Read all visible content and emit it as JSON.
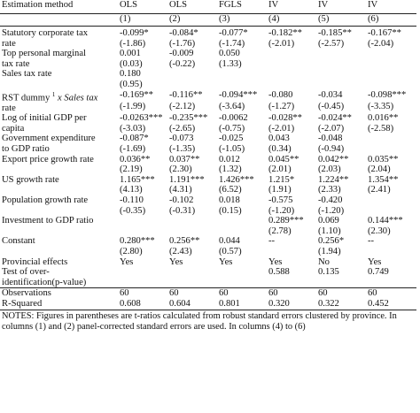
{
  "header": {
    "label": "Estimation method",
    "methods": [
      "OLS",
      "OLS",
      "FGLS",
      "IV",
      "IV",
      "IV"
    ],
    "numbers": [
      "(1)",
      "(2)",
      "(3)",
      "(4)",
      "(5)",
      "(6)"
    ]
  },
  "rows": [
    {
      "name_lines": [
        "Statutory corporate tax",
        "rate"
      ],
      "coef": [
        "-0.099*",
        "-0.084*",
        "-0.077*",
        "-0.182**",
        "-0.185**",
        "-0.167**"
      ],
      "t": [
        "(-1.86)",
        "(-1.76)",
        "(-1.74)",
        "(-2.01)",
        "(-2.57)",
        "(-2.04)"
      ]
    },
    {
      "name_lines": [
        "Top personal marginal",
        "tax rate"
      ],
      "coef": [
        "0.001",
        "-0.009",
        "0.050",
        "",
        "",
        ""
      ],
      "t": [
        "(0.03)",
        "(-0.22)",
        "(1.33)",
        "",
        "",
        ""
      ]
    },
    {
      "name_lines": [
        "Sales tax rate"
      ],
      "coef": [
        "0.180",
        "",
        "",
        "",
        "",
        ""
      ],
      "t": [
        "(0.95)",
        "",
        "",
        "",
        "",
        ""
      ]
    },
    {
      "name_lines": [
        "RST dummy ",
        "1",
        " x Sales tax",
        "rate"
      ],
      "coef": [
        "-0.169**",
        "-0.116**",
        "-0.094***",
        "-0.080",
        "-0.034",
        "-0.098***"
      ],
      "t": [
        "(-1.99)",
        "(-2.12)",
        "(-3.64)",
        "(-1.27)",
        "(-0.45)",
        "(-3.35)"
      ]
    },
    {
      "name_lines": [
        "Log of initial GDP per",
        "capita"
      ],
      "coef": [
        "-0.0263***",
        "-0.235***",
        "-0.0062",
        "-0.028**",
        "-0.024**",
        "0.016**"
      ],
      "t": [
        "(-3.03)",
        "(-2.65)",
        "(-0.75)",
        "(-2.01)",
        "(-2.07)",
        "(-2.58)"
      ]
    },
    {
      "name_lines": [
        "Government expenditure",
        "to GDP ratio"
      ],
      "coef": [
        "-0.087*",
        "-0.073",
        "-0.025",
        "0.043",
        "-0.048",
        ""
      ],
      "t": [
        "(-1.69)",
        "(-1.35)",
        "(-1.05)",
        "(0.34)",
        "(-0.94)",
        ""
      ]
    },
    {
      "name_lines": [
        "Export price growth rate"
      ],
      "coef": [
        "0.036**",
        "0.037**",
        "0.012",
        "0.045**",
        "0.042**",
        "0.035**"
      ],
      "t": [
        "(2.19)",
        "(2.30)",
        "(1.32)",
        "(2.01)",
        "(2.03)",
        "(2.04)"
      ]
    },
    {
      "name_lines": [
        "US growth rate"
      ],
      "coef": [
        "1.165***",
        "1.191***",
        "1.426***",
        "1.215*",
        "1.224**",
        "1.354**"
      ],
      "t": [
        "(4.13)",
        "(4.31)",
        "(6.52)",
        "(1.91)",
        "(2.33)",
        "(2.41)"
      ]
    },
    {
      "name_lines": [
        "Population growth rate"
      ],
      "coef": [
        "-0.110",
        "-0.102",
        "0.018",
        "-0.575",
        "-0.420",
        ""
      ],
      "t": [
        "(-0.35)",
        "(-0.31)",
        "(0.15)",
        "(-1.20)",
        "(-1.20)",
        ""
      ]
    },
    {
      "name_lines": [
        "Investment to GDP ratio"
      ],
      "coef": [
        "",
        "",
        "",
        "0.289***",
        "0.069",
        "0.144***"
      ],
      "t": [
        "",
        "",
        "",
        "(2.78)",
        "(1.10)",
        "(2.30)"
      ]
    },
    {
      "name_lines": [
        "Constant"
      ],
      "coef": [
        "0.280***",
        "0.256**",
        "0.044",
        "--",
        "0.256*",
        "--"
      ],
      "t": [
        "(2.80)",
        "(2.43)",
        "(0.57)",
        "",
        "(1.94)",
        ""
      ]
    }
  ],
  "provincial": {
    "label": "Provincial effects",
    "values": [
      "Yes",
      "Yes",
      "Yes",
      "Yes",
      "No",
      "Yes"
    ]
  },
  "overid": {
    "label_lines": [
      "Test of over-",
      "identification(p-value)"
    ],
    "values": [
      "",
      "",
      "",
      "0.588",
      "0.135",
      "0.749"
    ]
  },
  "observations": {
    "label": "Observations",
    "values": [
      "60",
      "60",
      "60",
      "60",
      "60",
      "60"
    ]
  },
  "rsquared": {
    "label": "R-Squared",
    "values": [
      "0.608",
      "0.604",
      "0.801",
      "0.320",
      "0.322",
      "0.452"
    ]
  },
  "notes": "NOTES: Figures in parentheses are t-ratios calculated from robust standard errors clustered by province. In columns (1) and (2) panel-corrected standard errors are used. In columns (4) to (6)"
}
